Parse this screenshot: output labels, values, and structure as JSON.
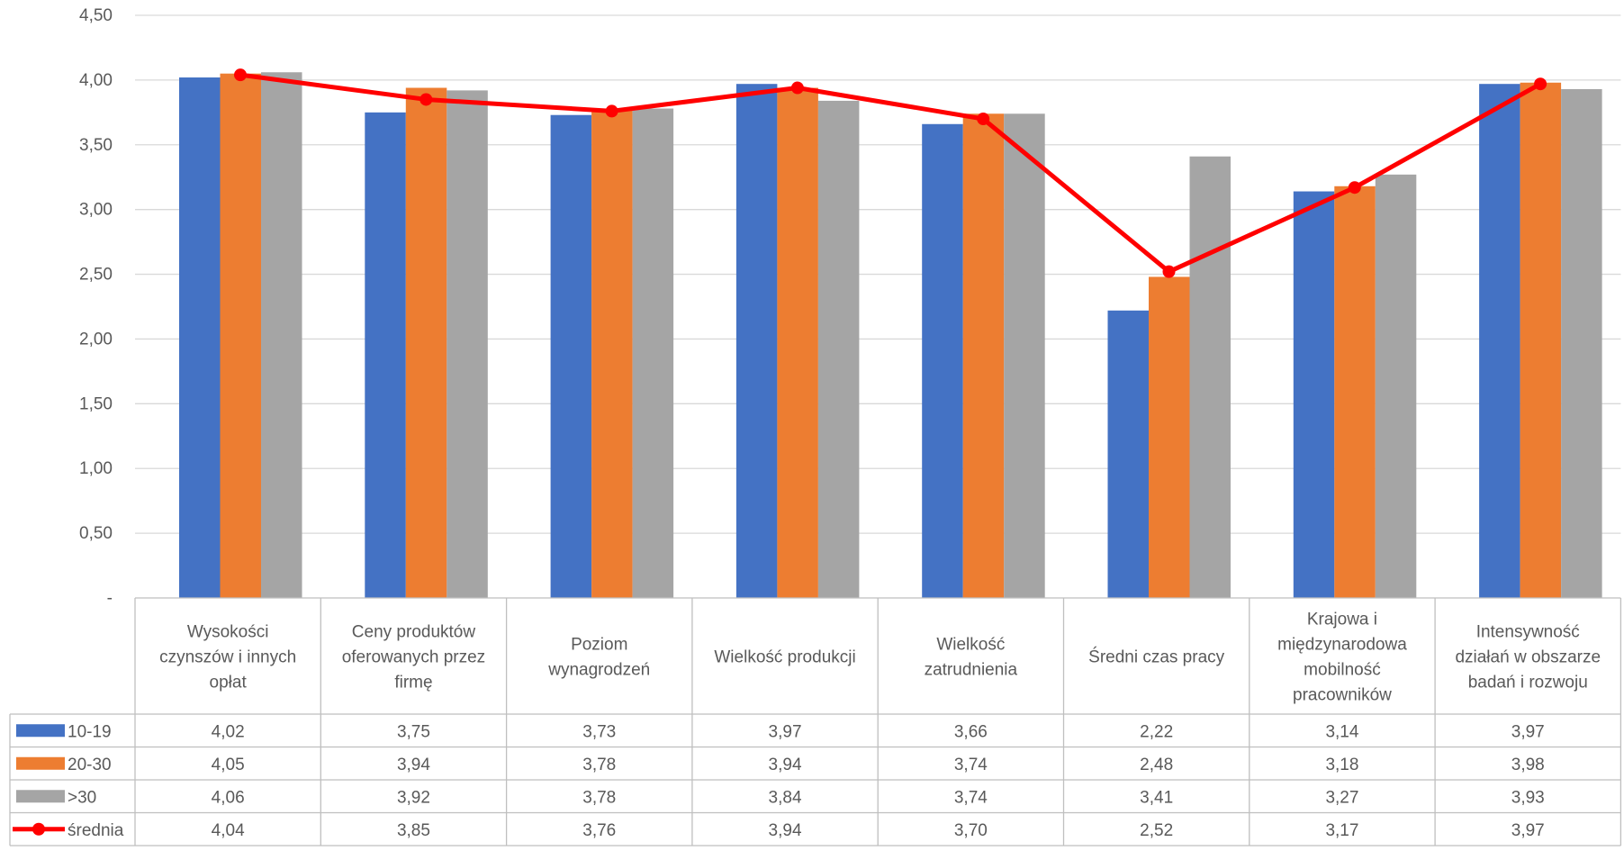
{
  "chart_data": {
    "type": "bar",
    "categories": [
      [
        "Wysokości",
        "czynszów i innych",
        "opłat"
      ],
      [
        "Ceny produktów",
        "oferowanych przez",
        "firmę"
      ],
      [
        "Poziom",
        "wynagrodzeń"
      ],
      [
        "Wielkość produkcji"
      ],
      [
        "Wielkość",
        "zatrudnienia"
      ],
      [
        "Średni czas pracy"
      ],
      [
        "Krajowa i",
        "międzynarodowa",
        "mobilność",
        "pracowników"
      ],
      [
        "Intensywność",
        "działań w obszarze",
        "badań i rozwoju"
      ]
    ],
    "series": [
      {
        "name": "10-19",
        "type": "bar",
        "color": "#4472C4",
        "values": [
          4.02,
          3.75,
          3.73,
          3.97,
          3.66,
          2.22,
          3.14,
          3.97
        ],
        "labels": [
          "4,02",
          "3,75",
          "3,73",
          "3,97",
          "3,66",
          "2,22",
          "3,14",
          "3,97"
        ]
      },
      {
        "name": "20-30",
        "type": "bar",
        "color": "#ED7D31",
        "values": [
          4.05,
          3.94,
          3.78,
          3.94,
          3.74,
          2.48,
          3.18,
          3.98
        ],
        "labels": [
          "4,05",
          "3,94",
          "3,78",
          "3,94",
          "3,74",
          "2,48",
          "3,18",
          "3,98"
        ]
      },
      {
        "name": ">30",
        "type": "bar",
        "color": "#A5A5A5",
        "values": [
          4.06,
          3.92,
          3.78,
          3.84,
          3.74,
          3.41,
          3.27,
          3.93
        ],
        "labels": [
          "4,06",
          "3,92",
          "3,78",
          "3,84",
          "3,74",
          "3,41",
          "3,27",
          "3,93"
        ]
      },
      {
        "name": "średnia",
        "type": "line",
        "color": "#FF0000",
        "values": [
          4.04,
          3.85,
          3.76,
          3.94,
          3.7,
          2.52,
          3.17,
          3.97
        ],
        "labels": [
          "4,04",
          "3,85",
          "3,76",
          "3,94",
          "3,70",
          "2,52",
          "3,17",
          "3,97"
        ]
      }
    ],
    "ylim": [
      0,
      4.5
    ],
    "yticks": [
      "-",
      "0,50",
      "1,00",
      "1,50",
      "2,00",
      "2,50",
      "3,00",
      "3,50",
      "4,00",
      "4,50"
    ],
    "grid": true,
    "data_table": true,
    "legend": "in data table"
  }
}
